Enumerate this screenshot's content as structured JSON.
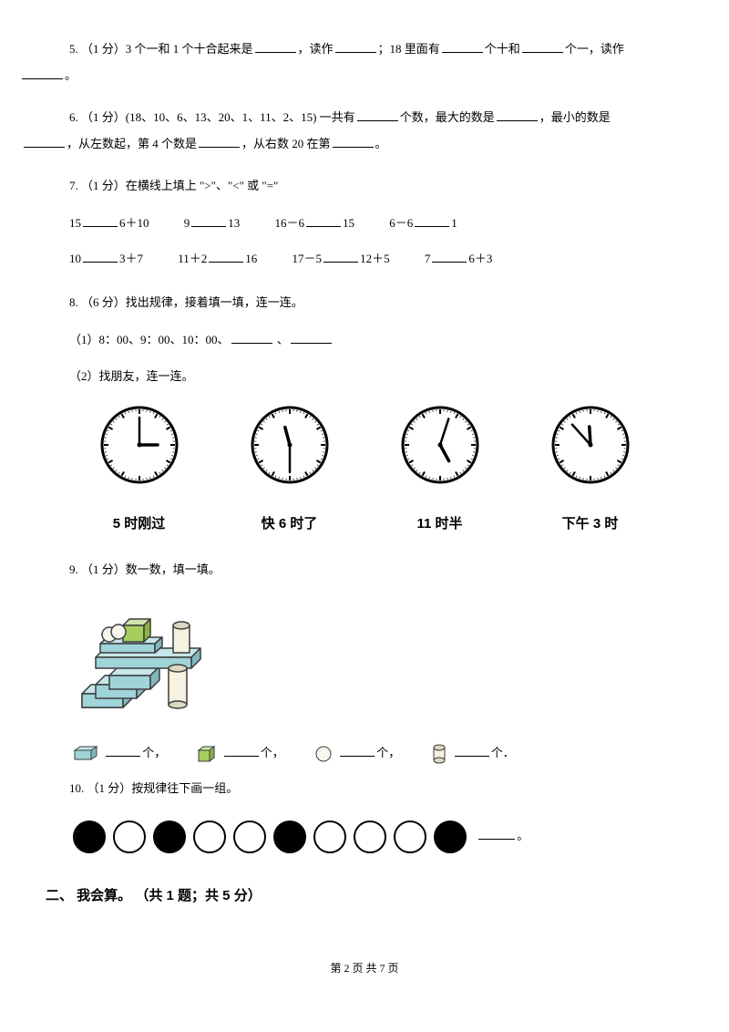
{
  "q5": {
    "text_a": "5.   （1 分）3 个一和 1 个十合起来是",
    "text_b": "，读作",
    "text_c": "；18 里面有",
    "text_d": "个十和",
    "text_e": "个一，读作",
    "text_f": "。"
  },
  "q6": {
    "text_a": "6.   （1 分）(18、10、6、13、20、1、11、2、15) 一共有",
    "text_b": "个数，最大的数是",
    "text_c": "，最小的数是",
    "text_d": "，从左数起，第 4 个数是",
    "text_e": "，从右数 20 在第",
    "text_f": "。"
  },
  "q7": {
    "title": "7.  （1 分）在横线上填上 \">\"、\"<\" 或 \"=\"",
    "row1": [
      "15",
      "6＋10",
      "9",
      "13",
      "16－6",
      "15",
      "6－6",
      "1"
    ],
    "row2": [
      "10",
      "3＋7",
      "11＋2",
      "16",
      "17－5",
      "12＋5",
      "7",
      "6＋3"
    ]
  },
  "q8": {
    "title": "8.  （6 分）找出规律，接着填一填，连一连。",
    "sub1": "（1）8：00、9：00、10：00、",
    "sep": "、",
    "sub2": "（2）找朋友，连一连。",
    "clocks": [
      {
        "hour": 3,
        "minute": 0,
        "label": "5 时刚过"
      },
      {
        "hour": 11,
        "minute": 30,
        "label": "快 6 时了"
      },
      {
        "hour": 5,
        "minute": 3,
        "label": "11 时半"
      },
      {
        "hour": 11,
        "minute": 53,
        "label": "下午 3 时"
      }
    ],
    "clock_style": {
      "face_fill": "#ffffff",
      "border": "#000000",
      "tick": "#000000",
      "hand": "#000000"
    }
  },
  "q9": {
    "title": "9.  （1 分）数一数，填一填。",
    "colors": {
      "cuboid": "#9fd4d9",
      "cube": "#a6ce5f",
      "sphere": "#f6f6ee",
      "cylinder_side": "#f6f2e0",
      "cylinder_top": "#dcd8c3",
      "outline": "#3d3d3d"
    },
    "counts_suffix": "个，",
    "counts_last": "个．"
  },
  "q10": {
    "title": "10.  （1 分）按规律往下画一组。",
    "pattern": [
      1,
      0,
      1,
      0,
      0,
      1,
      0,
      0,
      0,
      1
    ],
    "suffix": "。"
  },
  "section2": "二、 我会算。 （共 1 题；共 5 分）",
  "footer": "第 2 页 共 7 页"
}
